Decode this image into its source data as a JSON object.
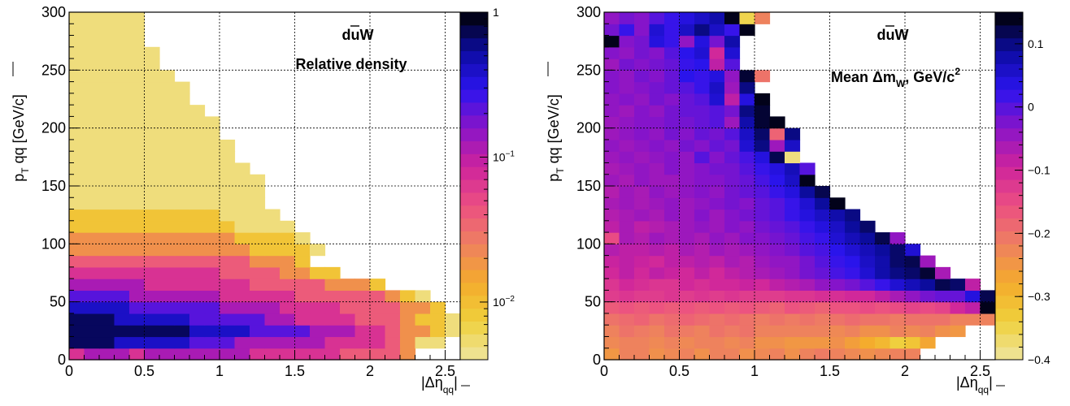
{
  "chart_data": [
    {
      "type": "heatmap",
      "title_main": "duW",
      "title_bar_segment": "u",
      "subtitle": "Relative density",
      "xlabel_main": "|Δη",
      "xlabel_sub": "qq",
      "xlabel_close": "|",
      "ylabel_main": "p",
      "ylabel_sub": "T",
      "ylabel_rest": " qq [GeV/c]",
      "xlim": [
        0,
        2.6
      ],
      "ylim": [
        0,
        300
      ],
      "x_bin_width": 0.1,
      "y_bin_width": 10,
      "x_ticks": [
        "0",
        "0.5",
        "1",
        "1.5",
        "2",
        "2.5"
      ],
      "y_ticks": [
        "0",
        "50",
        "100",
        "150",
        "200",
        "250",
        "300"
      ],
      "z_scale": "log",
      "zlim": [
        0.004,
        1
      ],
      "colorbar_ticks": [
        {
          "value": 1,
          "label": "1"
        },
        {
          "value": 0.1,
          "label": "10",
          "exp": "−1"
        },
        {
          "value": 0.01,
          "label": "10",
          "exp": "−2"
        }
      ],
      "grid": true,
      "rows_bottom_up": [
        "56665666666655555544443",
        "9998888877766666655554311",
        "99999999888877776665543321",
        "999888887777766555544432211",
        "8888777777666655554444332",
        "777766666655555444444321",
        "666665555555444443332",
        "555555555544443322",
        "4444444444443332",
        "33333333333322221",
        "3333333333322221",
        "222222222221111",
        "22222222221111",
        "1111111111111",
        "1111111111111",
        "1111111111111",
        "111111111111",
        "11111111111",
        "11111111111",
        "1111111111",
        "1111111111",
        "111111111",
        "11111111",
        "11111111",
        "1111111",
        "111111",
        "111111",
        "11111",
        "11111",
        "11111"
      ],
      "level_values": [
        0.005,
        0.009,
        0.02,
        0.04,
        0.07,
        0.12,
        0.22,
        0.4,
        0.7,
        1.0
      ]
    },
    {
      "type": "heatmap",
      "title_main": "duW",
      "title_bar_segment": "u",
      "subtitle": "Mean Δm",
      "subtitle_sub": "W",
      "subtitle_rest": ", GeV/c",
      "subtitle_sup": "2",
      "xlabel_main": "|Δη",
      "xlabel_sub": "qq",
      "xlabel_close": "|",
      "ylabel_main": "p",
      "ylabel_sub": "T",
      "ylabel_rest": " qq [GeV/c]",
      "xlim": [
        0,
        2.6
      ],
      "ylim": [
        0,
        300
      ],
      "x_bin_width": 0.1,
      "y_bin_width": 10,
      "x_ticks": [
        "0",
        "0.5",
        "1",
        "1.5",
        "2",
        "2.5"
      ],
      "y_ticks": [
        "0",
        "50",
        "100",
        "150",
        "200",
        "250",
        "300"
      ],
      "z_scale": "linear",
      "zlim": [
        -0.4,
        0.15
      ],
      "colorbar_ticks": [
        {
          "value": 0.1,
          "label": "0.1"
        },
        {
          "value": 0,
          "label": "0"
        },
        {
          "value": -0.1,
          "label": "−0.1"
        },
        {
          "value": -0.2,
          "label": "−0.2"
        },
        {
          "value": -0.3,
          "label": "−0.3"
        },
        {
          "value": -0.4,
          "label": "−0.4"
        }
      ],
      "grid": true,
      "cell_values_bottom_up": [
        [
          -0.25,
          -0.22,
          -0.22,
          -0.24,
          -0.23,
          -0.22,
          -0.24,
          -0.22,
          -0.22,
          -0.24,
          -0.23,
          -0.22,
          -0.24,
          -0.22,
          -0.21,
          -0.22,
          -0.23,
          -0.24,
          -0.23,
          -0.22,
          -0.22
        ],
        [
          -0.23,
          -0.22,
          -0.22,
          -0.23,
          -0.22,
          -0.23,
          -0.22,
          -0.22,
          -0.23,
          -0.22,
          -0.24,
          -0.24,
          -0.25,
          -0.25,
          -0.25,
          -0.24,
          -0.26,
          -0.28,
          -0.3,
          -0.34,
          -0.32,
          -0.27
        ],
        [
          -0.22,
          -0.2,
          -0.21,
          -0.22,
          -0.2,
          -0.21,
          -0.22,
          -0.2,
          -0.21,
          -0.2,
          -0.22,
          -0.22,
          -0.22,
          -0.22,
          -0.22,
          -0.23,
          -0.22,
          -0.24,
          -0.24,
          -0.22,
          -0.23,
          -0.22,
          -0.24,
          -0.25
        ],
        [
          -0.2,
          -0.19,
          -0.18,
          -0.2,
          -0.19,
          -0.18,
          -0.19,
          -0.2,
          -0.19,
          -0.2,
          -0.21,
          -0.2,
          -0.21,
          -0.2,
          -0.21,
          -0.2,
          -0.19,
          -0.2,
          -0.2,
          -0.21,
          -0.2,
          -0.2,
          -0.2,
          -0.22,
          -0.22,
          -0.22
        ],
        [
          -0.17,
          -0.16,
          -0.17,
          -0.16,
          -0.17,
          -0.16,
          -0.17,
          -0.16,
          -0.17,
          -0.16,
          -0.17,
          -0.18,
          -0.16,
          -0.17,
          -0.18,
          -0.16,
          -0.16,
          -0.15,
          -0.16,
          -0.15,
          -0.14,
          -0.15,
          -0.14,
          -0.1,
          -0.08,
          0.14,
          0.14
        ],
        [
          -0.13,
          -0.12,
          -0.13,
          -0.13,
          -0.12,
          -0.13,
          -0.12,
          -0.13,
          -0.12,
          -0.13,
          -0.13,
          -0.13,
          -0.12,
          -0.12,
          -0.11,
          -0.11,
          -0.1,
          -0.1,
          -0.08,
          -0.06,
          -0.04,
          -0.02,
          -0.01,
          -0.01,
          0.04,
          0.12,
          0.14
        ],
        [
          -0.12,
          -0.1,
          -0.11,
          -0.12,
          -0.12,
          -0.1,
          -0.11,
          -0.1,
          -0.1,
          -0.09,
          -0.1,
          -0.08,
          -0.07,
          -0.06,
          -0.04,
          -0.03,
          -0.02,
          0.0,
          0.02,
          0.05,
          0.07,
          0.09,
          0.12,
          0.11,
          -0.08
        ],
        [
          -0.1,
          -0.08,
          -0.1,
          -0.08,
          -0.09,
          -0.1,
          -0.08,
          -0.1,
          -0.08,
          -0.07,
          -0.06,
          -0.05,
          -0.04,
          -0.02,
          -0.01,
          0.01,
          0.02,
          0.05,
          0.08,
          0.1,
          0.11,
          0.13,
          -0.06
        ],
        [
          -0.09,
          -0.08,
          -0.09,
          -0.1,
          -0.08,
          -0.08,
          -0.07,
          -0.08,
          -0.06,
          -0.07,
          -0.05,
          -0.04,
          -0.04,
          -0.02,
          0.0,
          0.02,
          0.03,
          0.06,
          0.08,
          0.11,
          0.12,
          -0.05
        ],
        [
          -0.07,
          -0.08,
          -0.08,
          -0.07,
          -0.08,
          -0.06,
          -0.07,
          -0.05,
          -0.06,
          -0.05,
          -0.04,
          -0.03,
          -0.02,
          0.0,
          0.01,
          0.03,
          0.05,
          0.07,
          0.09,
          0.11,
          0.05
        ],
        [
          -0.15,
          -0.06,
          -0.07,
          -0.05,
          -0.06,
          -0.05,
          -0.06,
          -0.04,
          -0.05,
          -0.03,
          -0.03,
          -0.02,
          -0.01,
          0.01,
          0.02,
          0.05,
          0.07,
          0.09,
          0.12,
          -0.04
        ],
        [
          -0.08,
          -0.06,
          -0.08,
          -0.07,
          -0.06,
          -0.05,
          -0.04,
          -0.05,
          -0.03,
          -0.04,
          -0.02,
          -0.01,
          0.0,
          0.02,
          0.04,
          0.06,
          0.09,
          0.11
        ],
        [
          -0.07,
          -0.06,
          -0.05,
          -0.06,
          -0.04,
          -0.05,
          -0.03,
          -0.05,
          -0.03,
          -0.02,
          -0.01,
          0.0,
          0.02,
          0.04,
          0.06,
          0.08,
          0.1
        ],
        [
          -0.06,
          -0.05,
          -0.06,
          -0.05,
          -0.04,
          -0.05,
          -0.04,
          -0.03,
          -0.02,
          -0.03,
          -0.01,
          0.0,
          0.02,
          0.05,
          0.09,
          0.14
        ],
        [
          -0.07,
          -0.05,
          -0.06,
          -0.04,
          -0.05,
          -0.04,
          -0.03,
          -0.04,
          -0.02,
          -0.01,
          0.0,
          0.02,
          0.04,
          0.09,
          0.12
        ],
        [
          -0.05,
          -0.06,
          -0.04,
          -0.05,
          -0.05,
          -0.04,
          -0.03,
          -0.03,
          -0.02,
          -0.01,
          0.01,
          0.03,
          0.06,
          0.14
        ],
        [
          -0.06,
          -0.05,
          -0.04,
          -0.05,
          -0.03,
          -0.04,
          -0.03,
          -0.02,
          -0.02,
          0.0,
          0.02,
          0.04,
          0.07,
          0.0
        ],
        [
          -0.05,
          -0.04,
          -0.05,
          -0.04,
          -0.03,
          -0.04,
          0.0,
          -0.03,
          -0.01,
          0.01,
          0.04,
          0.12,
          -0.38
        ],
        [
          -0.04,
          -0.05,
          -0.04,
          -0.03,
          -0.04,
          -0.02,
          -0.03,
          -0.01,
          -0.02,
          0.05,
          0.1,
          -0.05,
          0.06
        ],
        [
          -0.05,
          -0.04,
          -0.03,
          -0.04,
          -0.02,
          -0.03,
          -0.01,
          -0.02,
          0.0,
          0.06,
          0.11,
          -0.18,
          0.1
        ],
        [
          -0.05,
          -0.04,
          -0.03,
          -0.03,
          -0.02,
          -0.02,
          -0.01,
          0.0,
          -0.05,
          0.08,
          0.13,
          0.14
        ],
        [
          -0.04,
          -0.05,
          -0.03,
          -0.04,
          -0.02,
          -0.01,
          -0.01,
          0.0,
          -0.02,
          0.1,
          0.13
        ],
        [
          -0.04,
          -0.03,
          -0.04,
          -0.02,
          -0.03,
          -0.01,
          0.0,
          0.05,
          -0.08,
          0.04,
          0.14
        ],
        [
          -0.03,
          -0.04,
          -0.03,
          -0.02,
          -0.01,
          0.0,
          0.02,
          0.06,
          -0.05,
          0.1
        ],
        [
          -0.03,
          -0.04,
          -0.02,
          -0.03,
          -0.01,
          0.03,
          0.02,
          0.04,
          -0.04,
          0.13,
          -0.2
        ],
        [
          -0.05,
          -0.02,
          -0.03,
          -0.02,
          -0.01,
          0.02,
          0.03,
          -0.08,
          0.0
        ],
        [
          -0.03,
          -0.04,
          -0.02,
          -0.03,
          0.0,
          0.03,
          0.05,
          -0.1,
          0.05
        ],
        [
          0.14,
          -0.03,
          -0.02,
          0.04,
          0.02,
          -0.04,
          0.04,
          -0.02,
          0.08
        ],
        [
          -0.02,
          0.02,
          -0.03,
          0.05,
          0.02,
          0.06,
          0.1,
          0.06,
          0.02,
          0.14
        ],
        [
          -0.04,
          -0.02,
          -0.03,
          0.0,
          0.02,
          0.04,
          0.06,
          0.08,
          0.14,
          -0.35,
          -0.22
        ]
      ]
    }
  ],
  "palette": [
    "#efe5a0",
    "#efd03c",
    "#f4ab2c",
    "#ee8060",
    "#ec4f82",
    "#ce249c",
    "#8a14c8",
    "#2b14ee",
    "#0c0ca0",
    "#000000"
  ]
}
